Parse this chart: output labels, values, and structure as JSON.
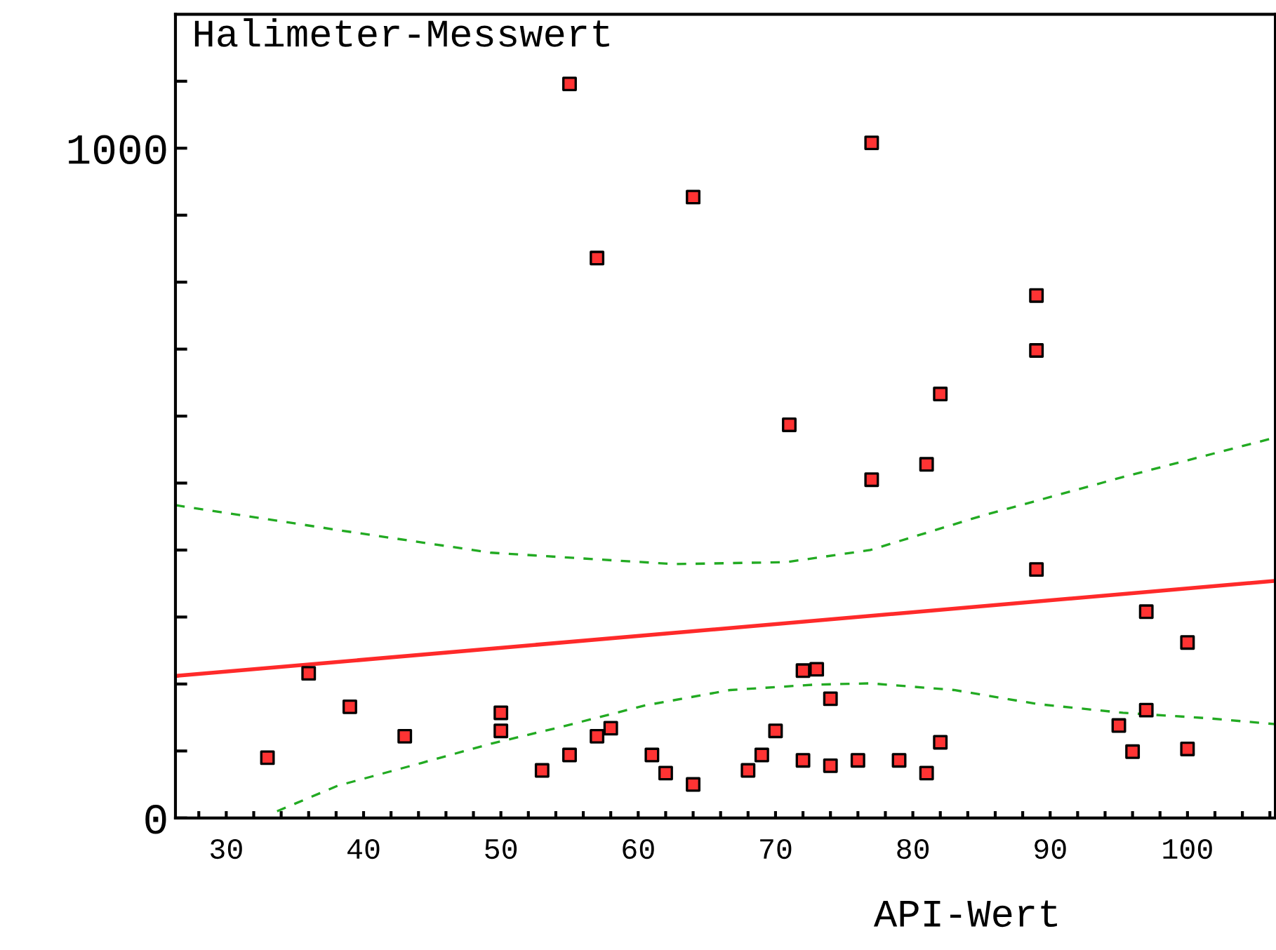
{
  "chart_data": {
    "type": "scatter",
    "title": "Halimeter-Messwert",
    "xlabel": "API-Wert",
    "xlim": [
      26.3,
      106.4
    ],
    "ylim": [
      0,
      1200
    ],
    "xticks": [
      {
        "value": 28,
        "label": null
      },
      30,
      {
        "value": 32,
        "label": null
      },
      {
        "value": 34,
        "label": null
      },
      {
        "value": 36,
        "label": null
      },
      {
        "value": 38,
        "label": null
      },
      40,
      {
        "value": 42,
        "label": null
      },
      {
        "value": 44,
        "label": null
      },
      {
        "value": 46,
        "label": null
      },
      {
        "value": 48,
        "label": null
      },
      50,
      {
        "value": 52,
        "label": null
      },
      {
        "value": 54,
        "label": null
      },
      {
        "value": 56,
        "label": null
      },
      {
        "value": 58,
        "label": null
      },
      60,
      {
        "value": 62,
        "label": null
      },
      {
        "value": 64,
        "label": null
      },
      {
        "value": 66,
        "label": null
      },
      {
        "value": 68,
        "label": null
      },
      70,
      {
        "value": 72,
        "label": null
      },
      {
        "value": 74,
        "label": null
      },
      {
        "value": 76,
        "label": null
      },
      {
        "value": 78,
        "label": null
      },
      80,
      {
        "value": 82,
        "label": null
      },
      {
        "value": 84,
        "label": null
      },
      {
        "value": 86,
        "label": null
      },
      {
        "value": 88,
        "label": null
      },
      90,
      {
        "value": 92,
        "label": null
      },
      {
        "value": 94,
        "label": null
      },
      {
        "value": 96,
        "label": null
      },
      {
        "value": 98,
        "label": null
      },
      100,
      {
        "value": 102,
        "label": null
      },
      {
        "value": 104,
        "label": null
      },
      {
        "value": 106,
        "label": null
      }
    ],
    "yticks": [
      0,
      {
        "value": 100,
        "label": null
      },
      {
        "value": 200,
        "label": null
      },
      {
        "value": 300,
        "label": null
      },
      {
        "value": 400,
        "label": null
      },
      {
        "value": 500,
        "label": null
      },
      {
        "value": 600,
        "label": null
      },
      {
        "value": 700,
        "label": null
      },
      {
        "value": 800,
        "label": null
      },
      {
        "value": 900,
        "label": null
      },
      1000,
      {
        "value": 1100,
        "label": null
      }
    ],
    "grid": false,
    "legend": false,
    "series": [
      {
        "color": "#ff3333",
        "marker": "square",
        "x": [
          33,
          36,
          39,
          43,
          50,
          50,
          53,
          55,
          57,
          58,
          61,
          62,
          64,
          68,
          69,
          70,
          72,
          72,
          73,
          74,
          74,
          76,
          79,
          81,
          82,
          95,
          96,
          97,
          97,
          100,
          100,
          89,
          55,
          57,
          64,
          77,
          71,
          77,
          81,
          82,
          89,
          89
        ],
        "values": [
          90,
          216,
          166,
          122,
          157,
          130,
          71,
          94,
          122,
          134,
          94,
          67,
          50,
          71,
          94,
          130,
          86,
          220,
          222,
          178,
          78,
          86,
          86,
          67,
          113,
          138,
          99,
          161,
          308,
          103,
          262,
          371,
          1096,
          836,
          927,
          1008,
          587,
          505,
          528,
          633,
          780,
          698
        ]
      },
      {
        "type": "line",
        "color": "#ff2a2a",
        "line_style": "solid",
        "x": [
          26.3,
          106.4
        ],
        "values": [
          212,
          354
        ]
      },
      {
        "type": "line",
        "color": "#22aa22",
        "line_style": "dashed",
        "x": [
          26.3,
          38.1,
          49.3,
          62.6,
          70.8,
          76.9,
          85,
          95.3,
          106.4
        ],
        "values": [
          467,
          430,
          396,
          379,
          382,
          400,
          451,
          509,
          568
        ]
      },
      {
        "type": "line",
        "color": "#22aa22",
        "line_style": "dashed",
        "x": [
          33.7,
          38.1,
          44.2,
          49.3,
          54.4,
          60.5,
          66.7,
          72.8,
          76.9,
          83,
          89.1,
          95.3,
          101.4,
          106.4
        ],
        "values": [
          10,
          48,
          82,
          111,
          136,
          168,
          191,
          199,
          201,
          191,
          170,
          157,
          149,
          140
        ]
      }
    ]
  }
}
